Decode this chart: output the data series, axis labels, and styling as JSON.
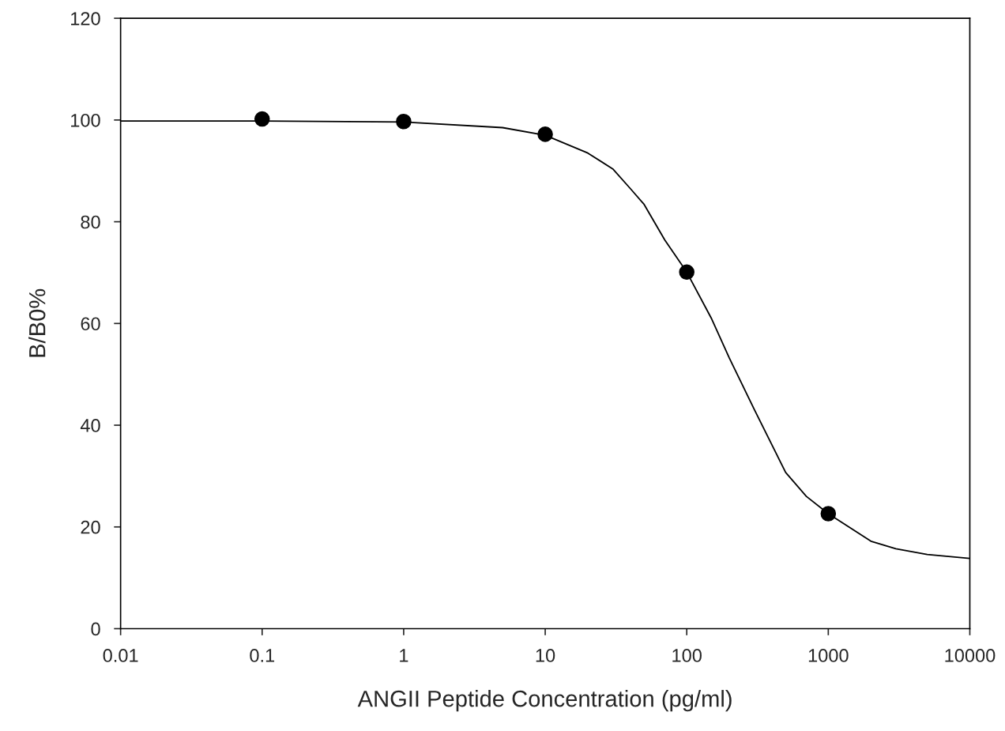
{
  "chart_data": {
    "type": "scatter",
    "xlabel": "ANGII Peptide Concentration (pg/ml)",
    "ylabel": "B/B0%",
    "log": "x",
    "xlim": [
      0.01,
      10000
    ],
    "xticks": [
      {
        "value": 0.01,
        "label": "0.01"
      },
      {
        "value": 0.1,
        "label": "0.1"
      },
      1,
      10,
      100,
      1000,
      10000
    ],
    "ylim": [
      0,
      120
    ],
    "yticks": [
      0,
      20,
      40,
      60,
      80,
      100,
      120
    ],
    "grid": false,
    "legend": false,
    "series": [
      {
        "type": "line",
        "color": "#000000",
        "marker": "none",
        "line_style": "solid",
        "x": [
          0.01,
          0.1,
          1,
          5,
          10,
          20,
          30,
          40,
          50,
          70,
          100,
          150,
          200,
          300,
          500,
          700,
          1000,
          2000,
          3000,
          5000,
          10000
        ],
        "values": [
          99.8,
          99.8,
          99.6,
          98.5,
          97.0,
          93.5,
          90.4,
          86.5,
          83.4,
          76.4,
          70.1,
          60.9,
          53.2,
          43.1,
          30.7,
          26.0,
          22.6,
          17.2,
          15.7,
          14.6,
          13.8
        ]
      },
      {
        "color": "#000000",
        "marker": "circle",
        "x": [
          0.1,
          1,
          10,
          100,
          1000
        ],
        "values": [
          100.2,
          99.7,
          97.2,
          70.1,
          22.6
        ]
      }
    ]
  }
}
